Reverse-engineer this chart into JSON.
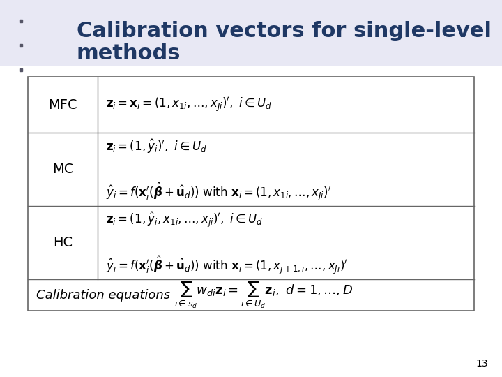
{
  "title_line1": "Calibration vectors for single-level",
  "title_line2": "methods",
  "title_color": "#1F3864",
  "title_bg_color": "#E8E8F4",
  "slide_bg": "#FFFFFF",
  "page_number": "13",
  "icon_color": "#555566",
  "table_border_color": "#666666",
  "label_fontsize": 14,
  "formula_fontsize": 12,
  "footer_label_fontsize": 13,
  "title_fontsize": 22,
  "rows": [
    {
      "label": "MFC",
      "has_two": false
    },
    {
      "label": "MC",
      "has_two": true
    },
    {
      "label": "HC",
      "has_two": true
    }
  ],
  "mfc_f1": "$\\mathbf{z}_i = \\mathbf{x}_i = (1, x_{1i}, \\ldots, x_{Ji})^{\\prime},\\ i \\in U_d$",
  "mc_f1": "$\\mathbf{z}_i = (1, \\hat{y}_i)^{\\prime},\\ i \\in U_d$",
  "mc_f2": "$\\hat{y}_i = f(\\mathbf{x}^{\\prime}_i(\\hat{\\boldsymbol{\\beta}} + \\hat{\\mathbf{u}}_d))\\ \\mathrm{with}\\ \\mathbf{x}_i = (1, x_{1i}, \\ldots, x_{Ji})^{\\prime}$",
  "hc_f1": "$\\mathbf{z}_i = (1, \\hat{y}_i, x_{1i}, \\ldots, x_{ji})^{\\prime},\\ i \\in U_d$",
  "hc_f2": "$\\hat{y}_i = f(\\mathbf{x}^{\\prime}_i(\\hat{\\boldsymbol{\\beta}} + \\hat{\\mathbf{u}}_d))\\ \\mathrm{with}\\ \\mathbf{x}_i = (1, x_{j+1,i}, \\ldots, x_{Ji})^{\\prime}$",
  "footer_label": "Calibration equations",
  "footer_formula": "$\\sum_{i \\in s_d} w_{di}\\mathbf{z}_i = \\sum_{i \\in U_d} \\mathbf{z}_i,\\ d = 1,\\ldots,D$"
}
